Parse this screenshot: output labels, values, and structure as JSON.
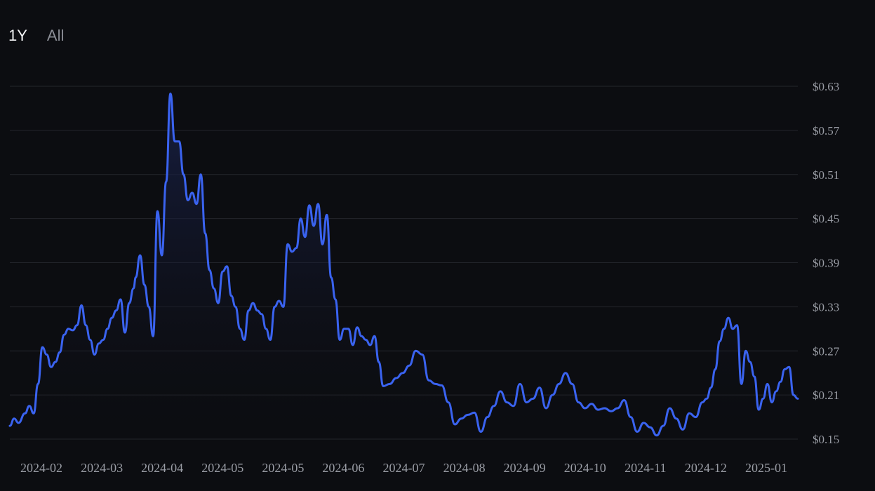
{
  "range_tabs": [
    {
      "label": "1Y",
      "active": true
    },
    {
      "label": "All",
      "active": false
    }
  ],
  "colors": {
    "background": "#0c0d11",
    "line": "#3a63f0",
    "fill_top": "#1b2554",
    "grid": "#24262c",
    "tick_text": "#9a9da5"
  },
  "chart_data": {
    "type": "area",
    "ylim": [
      0.15,
      0.63
    ],
    "yticks": [
      0.15,
      0.21,
      0.27,
      0.33,
      0.39,
      0.45,
      0.51,
      0.57,
      0.63
    ],
    "ytick_labels": [
      "$0.15",
      "$0.21",
      "$0.27",
      "$0.33",
      "$0.39",
      "$0.45",
      "$0.51",
      "$0.57",
      "$0.63"
    ],
    "xtick_labels": [
      "2024-02",
      "2024-03",
      "2024-04",
      "2024-05",
      "2024-05",
      "2024-06",
      "2024-07",
      "2024-08",
      "2024-09",
      "2024-10",
      "2024-11",
      "2024-12",
      "2025-01"
    ],
    "grid": true,
    "y_axis_position": "right",
    "x": [
      "2024-01-16",
      "2024-01-18",
      "2024-01-20",
      "2024-01-23",
      "2024-01-25",
      "2024-01-27",
      "2024-01-29",
      "2024-01-31",
      "2024-02-02",
      "2024-02-04",
      "2024-02-06",
      "2024-02-08",
      "2024-02-10",
      "2024-02-12",
      "2024-02-14",
      "2024-02-16",
      "2024-02-18",
      "2024-02-20",
      "2024-02-22",
      "2024-02-24",
      "2024-02-26",
      "2024-02-28",
      "2024-03-01",
      "2024-03-03",
      "2024-03-05",
      "2024-03-07",
      "2024-03-09",
      "2024-03-11",
      "2024-03-13",
      "2024-03-14",
      "2024-03-16",
      "2024-03-18",
      "2024-03-20",
      "2024-03-22",
      "2024-03-24",
      "2024-03-26",
      "2024-03-28",
      "2024-03-30",
      "2024-04-01",
      "2024-04-03",
      "2024-04-05",
      "2024-04-07",
      "2024-04-09",
      "2024-04-11",
      "2024-04-13",
      "2024-04-15",
      "2024-04-17",
      "2024-04-19",
      "2024-04-21",
      "2024-04-23",
      "2024-04-25",
      "2024-04-27",
      "2024-04-29",
      "2024-05-01",
      "2024-05-03",
      "2024-05-05",
      "2024-05-07",
      "2024-05-09",
      "2024-05-11",
      "2024-05-13",
      "2024-05-15",
      "2024-05-17",
      "2024-05-19",
      "2024-05-21",
      "2024-05-23",
      "2024-05-25",
      "2024-05-27",
      "2024-05-29",
      "2024-05-31",
      "2024-06-02",
      "2024-06-04",
      "2024-06-06",
      "2024-06-08",
      "2024-06-10",
      "2024-06-12",
      "2024-06-14",
      "2024-06-16",
      "2024-06-18",
      "2024-06-20",
      "2024-06-22",
      "2024-06-24",
      "2024-06-26",
      "2024-06-28",
      "2024-06-30",
      "2024-07-02",
      "2024-07-04",
      "2024-07-06",
      "2024-07-09",
      "2024-07-12",
      "2024-07-15",
      "2024-07-18",
      "2024-07-21",
      "2024-07-24",
      "2024-07-27",
      "2024-07-30",
      "2024-08-02",
      "2024-08-05",
      "2024-08-08",
      "2024-08-11",
      "2024-08-14",
      "2024-08-17",
      "2024-08-20",
      "2024-08-23",
      "2024-08-26",
      "2024-08-29",
      "2024-09-01",
      "2024-09-04",
      "2024-09-07",
      "2024-09-10",
      "2024-09-13",
      "2024-09-16",
      "2024-09-19",
      "2024-09-22",
      "2024-09-25",
      "2024-09-28",
      "2024-10-01",
      "2024-10-04",
      "2024-10-07",
      "2024-10-10",
      "2024-10-13",
      "2024-10-16",
      "2024-10-19",
      "2024-10-22",
      "2024-10-25",
      "2024-10-28",
      "2024-10-31",
      "2024-11-03",
      "2024-11-06",
      "2024-11-09",
      "2024-11-12",
      "2024-11-15",
      "2024-11-18",
      "2024-11-21",
      "2024-11-24",
      "2024-11-27",
      "2024-11-30",
      "2024-12-02",
      "2024-12-04",
      "2024-12-06",
      "2024-12-08",
      "2024-12-10",
      "2024-12-12",
      "2024-12-14",
      "2024-12-16",
      "2024-12-18",
      "2024-12-20",
      "2024-12-22",
      "2024-12-24",
      "2024-12-26",
      "2024-12-28",
      "2024-12-30",
      "2025-01-01",
      "2025-01-03",
      "2025-01-05",
      "2025-01-07",
      "2025-01-09",
      "2025-01-11",
      "2025-01-13"
    ],
    "values": [
      0.168,
      0.178,
      0.172,
      0.185,
      0.195,
      0.185,
      0.225,
      0.275,
      0.265,
      0.248,
      0.255,
      0.268,
      0.292,
      0.3,
      0.298,
      0.305,
      0.332,
      0.305,
      0.285,
      0.265,
      0.28,
      0.285,
      0.3,
      0.315,
      0.325,
      0.34,
      0.295,
      0.335,
      0.355,
      0.37,
      0.4,
      0.36,
      0.33,
      0.29,
      0.46,
      0.4,
      0.5,
      0.62,
      0.555,
      0.555,
      0.51,
      0.475,
      0.485,
      0.47,
      0.51,
      0.43,
      0.38,
      0.355,
      0.335,
      0.378,
      0.385,
      0.345,
      0.33,
      0.3,
      0.285,
      0.325,
      0.335,
      0.325,
      0.32,
      0.3,
      0.285,
      0.33,
      0.338,
      0.33,
      0.415,
      0.405,
      0.41,
      0.45,
      0.425,
      0.468,
      0.44,
      0.47,
      0.415,
      0.455,
      0.37,
      0.34,
      0.285,
      0.3,
      0.3,
      0.278,
      0.302,
      0.29,
      0.285,
      0.278,
      0.29,
      0.255,
      0.222,
      0.225,
      0.233,
      0.24,
      0.25,
      0.27,
      0.265,
      0.23,
      0.225,
      0.223,
      0.2,
      0.17,
      0.178,
      0.183,
      0.186,
      0.16,
      0.18,
      0.195,
      0.215,
      0.2,
      0.195,
      0.225,
      0.2,
      0.205,
      0.22,
      0.192,
      0.21,
      0.225,
      0.24,
      0.225,
      0.2,
      0.192,
      0.198,
      0.19,
      0.192,
      0.188,
      0.192,
      0.203,
      0.18,
      0.16,
      0.172,
      0.166,
      0.155,
      0.168,
      0.192,
      0.178,
      0.163,
      0.185,
      0.18,
      0.2,
      0.205,
      0.22,
      0.245,
      0.283,
      0.3,
      0.315,
      0.3,
      0.305,
      0.225,
      0.27,
      0.255,
      0.235,
      0.19,
      0.205,
      0.225,
      0.2,
      0.215,
      0.228,
      0.245,
      0.248,
      0.21,
      0.205
    ]
  }
}
